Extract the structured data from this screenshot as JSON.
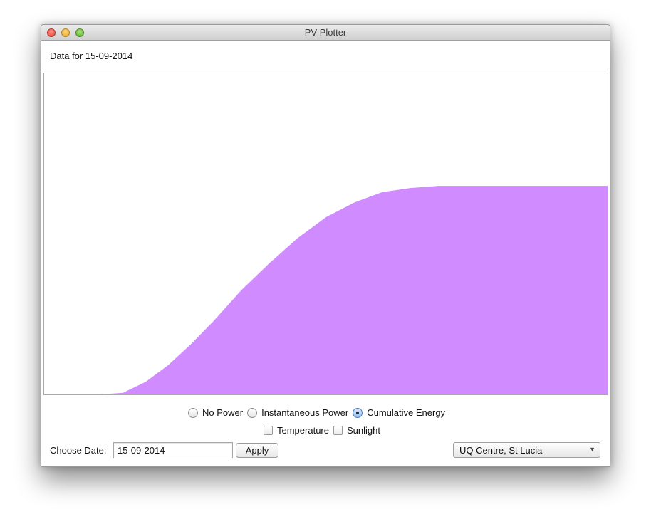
{
  "window": {
    "title": "PV Plotter"
  },
  "data_label": "Data for 15-09-2014",
  "chart_data": {
    "type": "area",
    "title": "",
    "xlabel": "",
    "ylabel": "",
    "x": [
      0.0,
      0.05,
      0.1,
      0.14,
      0.18,
      0.22,
      0.26,
      0.3,
      0.35,
      0.4,
      0.45,
      0.5,
      0.55,
      0.6,
      0.65,
      0.7,
      0.75,
      0.8,
      0.85,
      0.9,
      0.95,
      1.0
    ],
    "values": [
      0.0,
      0.0,
      0.0,
      0.008,
      0.06,
      0.14,
      0.24,
      0.35,
      0.5,
      0.63,
      0.75,
      0.85,
      0.92,
      0.97,
      0.99,
      1.0,
      1.0,
      1.0,
      1.0,
      1.0,
      1.0,
      1.0
    ],
    "xlim": [
      0,
      1
    ],
    "ylim": [
      0,
      1.54
    ],
    "grid": false,
    "fill_color": "#d08cff"
  },
  "display_options": [
    {
      "label": "No Power",
      "checked": false
    },
    {
      "label": "Instantaneous Power",
      "checked": false
    },
    {
      "label": "Cumulative Energy",
      "checked": true
    }
  ],
  "overlays": [
    {
      "label": "Temperature",
      "checked": false
    },
    {
      "label": "Sunlight",
      "checked": false
    }
  ],
  "date_picker": {
    "label": "Choose Date:",
    "value": "15-09-2014",
    "apply_label": "Apply"
  },
  "location": {
    "selected": "UQ Centre, St Lucia"
  }
}
